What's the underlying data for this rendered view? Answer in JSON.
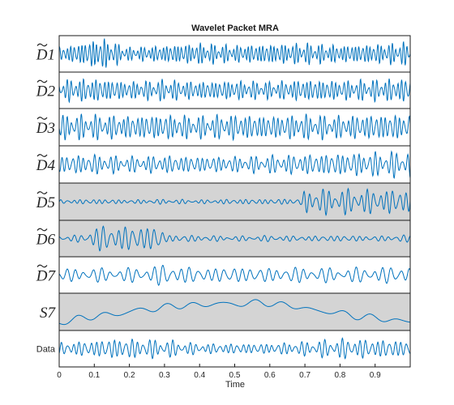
{
  "chart_data": {
    "type": "line",
    "title": "Wavelet Packet MRA",
    "xlabel": "Time",
    "xlim": [
      0,
      1
    ],
    "x_ticks": [
      "0",
      "0.1",
      "0.2",
      "0.3",
      "0.4",
      "0.5",
      "0.6",
      "0.7",
      "0.8",
      "0.9"
    ],
    "line_color": "#0072bd",
    "highlight_color": "#d4d4d4",
    "series": [
      {
        "name": "D1",
        "label": "D1",
        "tilde": true,
        "highlighted": false,
        "freq": 95,
        "amp": 0.75,
        "envelope": [
          [
            0.0,
            0.6
          ],
          [
            0.05,
            0.9
          ],
          [
            0.12,
            1.5
          ],
          [
            0.2,
            0.6
          ],
          [
            0.3,
            0.8
          ],
          [
            0.4,
            1.0
          ],
          [
            0.5,
            0.8
          ],
          [
            0.6,
            0.9
          ],
          [
            0.7,
            1.0
          ],
          [
            0.8,
            0.8
          ],
          [
            0.9,
            0.9
          ],
          [
            1.0,
            1.1
          ]
        ]
      },
      {
        "name": "D2",
        "label": "D2",
        "tilde": true,
        "highlighted": false,
        "freq": 85,
        "amp": 0.75,
        "envelope": [
          [
            0.0,
            1.0
          ],
          [
            0.1,
            1.1
          ],
          [
            0.2,
            0.8
          ],
          [
            0.3,
            1.0
          ],
          [
            0.4,
            0.8
          ],
          [
            0.5,
            0.9
          ],
          [
            0.6,
            0.8
          ],
          [
            0.7,
            1.0
          ],
          [
            0.8,
            0.9
          ],
          [
            0.9,
            1.0
          ],
          [
            1.0,
            1.1
          ]
        ]
      },
      {
        "name": "D3",
        "label": "D3",
        "tilde": true,
        "highlighted": false,
        "freq": 75,
        "amp": 0.85,
        "envelope": [
          [
            0.0,
            1.0
          ],
          [
            0.1,
            1.0
          ],
          [
            0.2,
            0.9
          ],
          [
            0.3,
            1.0
          ],
          [
            0.4,
            0.9
          ],
          [
            0.5,
            1.0
          ],
          [
            0.6,
            0.9
          ],
          [
            0.7,
            1.0
          ],
          [
            0.8,
            0.9
          ],
          [
            0.9,
            1.0
          ],
          [
            1.0,
            1.0
          ]
        ]
      },
      {
        "name": "D4",
        "label": "D4",
        "tilde": true,
        "highlighted": false,
        "freq": 65,
        "amp": 0.75,
        "envelope": [
          [
            0.0,
            0.8
          ],
          [
            0.1,
            0.9
          ],
          [
            0.2,
            0.7
          ],
          [
            0.3,
            0.8
          ],
          [
            0.4,
            0.7
          ],
          [
            0.5,
            0.7
          ],
          [
            0.6,
            0.8
          ],
          [
            0.7,
            0.9
          ],
          [
            0.8,
            1.0
          ],
          [
            0.9,
            1.1
          ],
          [
            1.0,
            1.2
          ]
        ]
      },
      {
        "name": "D5",
        "label": "D5",
        "tilde": true,
        "highlighted": true,
        "freq": 55,
        "amp": 0.85,
        "envelope": [
          [
            0.0,
            0.15
          ],
          [
            0.1,
            0.2
          ],
          [
            0.2,
            0.15
          ],
          [
            0.3,
            0.2
          ],
          [
            0.4,
            0.15
          ],
          [
            0.5,
            0.2
          ],
          [
            0.6,
            0.2
          ],
          [
            0.69,
            0.25
          ],
          [
            0.7,
            1.0
          ],
          [
            0.8,
            1.0
          ],
          [
            0.9,
            0.95
          ],
          [
            1.0,
            0.95
          ]
        ]
      },
      {
        "name": "D6",
        "label": "D6",
        "tilde": true,
        "highlighted": true,
        "freq": 48,
        "amp": 0.85,
        "envelope": [
          [
            0.0,
            0.25
          ],
          [
            0.08,
            0.3
          ],
          [
            0.09,
            1.0
          ],
          [
            0.2,
            1.0
          ],
          [
            0.29,
            1.0
          ],
          [
            0.3,
            0.3
          ],
          [
            0.4,
            0.25
          ],
          [
            0.5,
            0.2
          ],
          [
            0.6,
            0.25
          ],
          [
            0.7,
            0.2
          ],
          [
            0.8,
            0.25
          ],
          [
            0.9,
            0.2
          ],
          [
            1.0,
            0.3
          ]
        ]
      },
      {
        "name": "D7",
        "label": "D7",
        "tilde": true,
        "highlighted": false,
        "freq": 40,
        "amp": 0.6,
        "envelope": [
          [
            0.0,
            0.7
          ],
          [
            0.1,
            0.8
          ],
          [
            0.2,
            0.8
          ],
          [
            0.3,
            1.2
          ],
          [
            0.4,
            0.8
          ],
          [
            0.5,
            0.9
          ],
          [
            0.6,
            0.8
          ],
          [
            0.7,
            0.9
          ],
          [
            0.8,
            0.8
          ],
          [
            0.9,
            0.9
          ],
          [
            1.0,
            1.0
          ]
        ]
      },
      {
        "name": "S7",
        "label": "S7",
        "tilde": false,
        "highlighted": true,
        "freq": 12,
        "amp": 0.25,
        "trend": [
          [
            0.0,
            -0.7
          ],
          [
            0.05,
            -0.4
          ],
          [
            0.1,
            -0.3
          ],
          [
            0.2,
            0.0
          ],
          [
            0.3,
            0.3
          ],
          [
            0.4,
            0.45
          ],
          [
            0.5,
            0.5
          ],
          [
            0.6,
            0.55
          ],
          [
            0.65,
            0.4
          ],
          [
            0.7,
            0.2
          ],
          [
            0.8,
            -0.1
          ],
          [
            0.9,
            -0.4
          ],
          [
            1.0,
            -0.6
          ]
        ],
        "envelope": [
          [
            0.0,
            1.0
          ],
          [
            1.0,
            1.0
          ]
        ]
      },
      {
        "name": "Data",
        "label": "Data",
        "tilde": false,
        "highlighted": false,
        "freq": 60,
        "amp": 0.7,
        "envelope": [
          [
            0.0,
            0.6
          ],
          [
            0.1,
            0.8
          ],
          [
            0.15,
            1.0
          ],
          [
            0.3,
            0.9
          ],
          [
            0.4,
            0.5
          ],
          [
            0.5,
            0.5
          ],
          [
            0.6,
            0.5
          ],
          [
            0.7,
            0.7
          ],
          [
            0.8,
            1.0
          ],
          [
            0.9,
            0.9
          ],
          [
            1.0,
            0.8
          ]
        ]
      }
    ]
  }
}
